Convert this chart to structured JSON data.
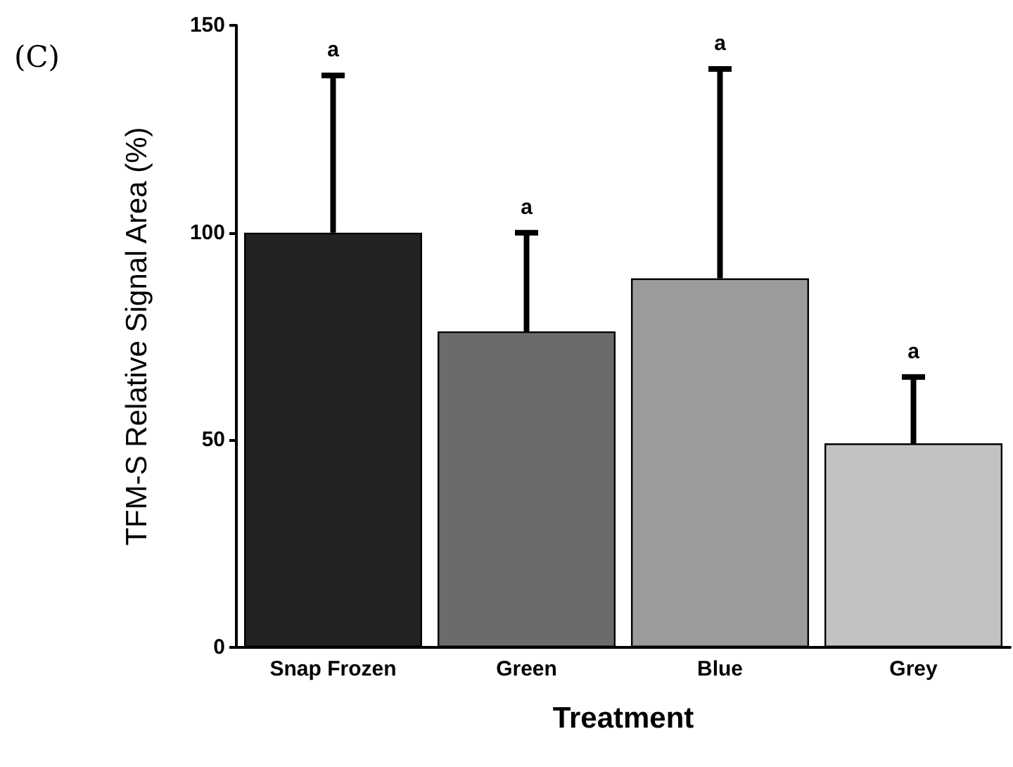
{
  "chart_data": {
    "type": "bar",
    "categories": [
      "Snap Frozen",
      "Green",
      "Blue",
      "Grey"
    ],
    "values": [
      100,
      76.2,
      89.0,
      49.2
    ],
    "colors": [
      "#222222",
      "#6b6b6b",
      "#9b9b9b",
      "#c2c2c2"
    ],
    "errors": [
      [
        100,
        137.9
      ],
      [
        76.2,
        100
      ],
      [
        89.0,
        139.5
      ],
      [
        49.2,
        65.2
      ]
    ],
    "ylim": [
      0,
      150
    ],
    "yticks": [
      0,
      50,
      100,
      150
    ],
    "xlabel": "Treatment",
    "ylabel": "TFM-S Relative Signal Area (%)",
    "annotations": [
      "(C)",
      "a",
      "a",
      "a",
      "a"
    ],
    "grid": false
  }
}
